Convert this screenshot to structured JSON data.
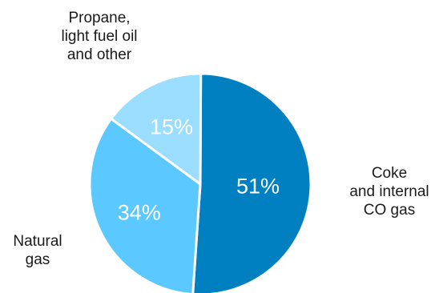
{
  "chart_data": {
    "type": "pie",
    "slices": [
      {
        "label_lines": [
          "Coke",
          "and internal",
          "CO gas"
        ],
        "value": 51,
        "value_label": "51%",
        "color": "#0080c0"
      },
      {
        "label_lines": [
          "Natural",
          "gas"
        ],
        "value": 34,
        "value_label": "34%",
        "color": "#5bc8ff"
      },
      {
        "label_lines": [
          "Propane,",
          "light fuel oil",
          "and other"
        ],
        "value": 15,
        "value_label": "15%",
        "color": "#9bddff"
      }
    ],
    "start_angle": "12 o'clock",
    "direction": "clockwise",
    "legend": "none",
    "slice_border_color": "#ffffff"
  }
}
